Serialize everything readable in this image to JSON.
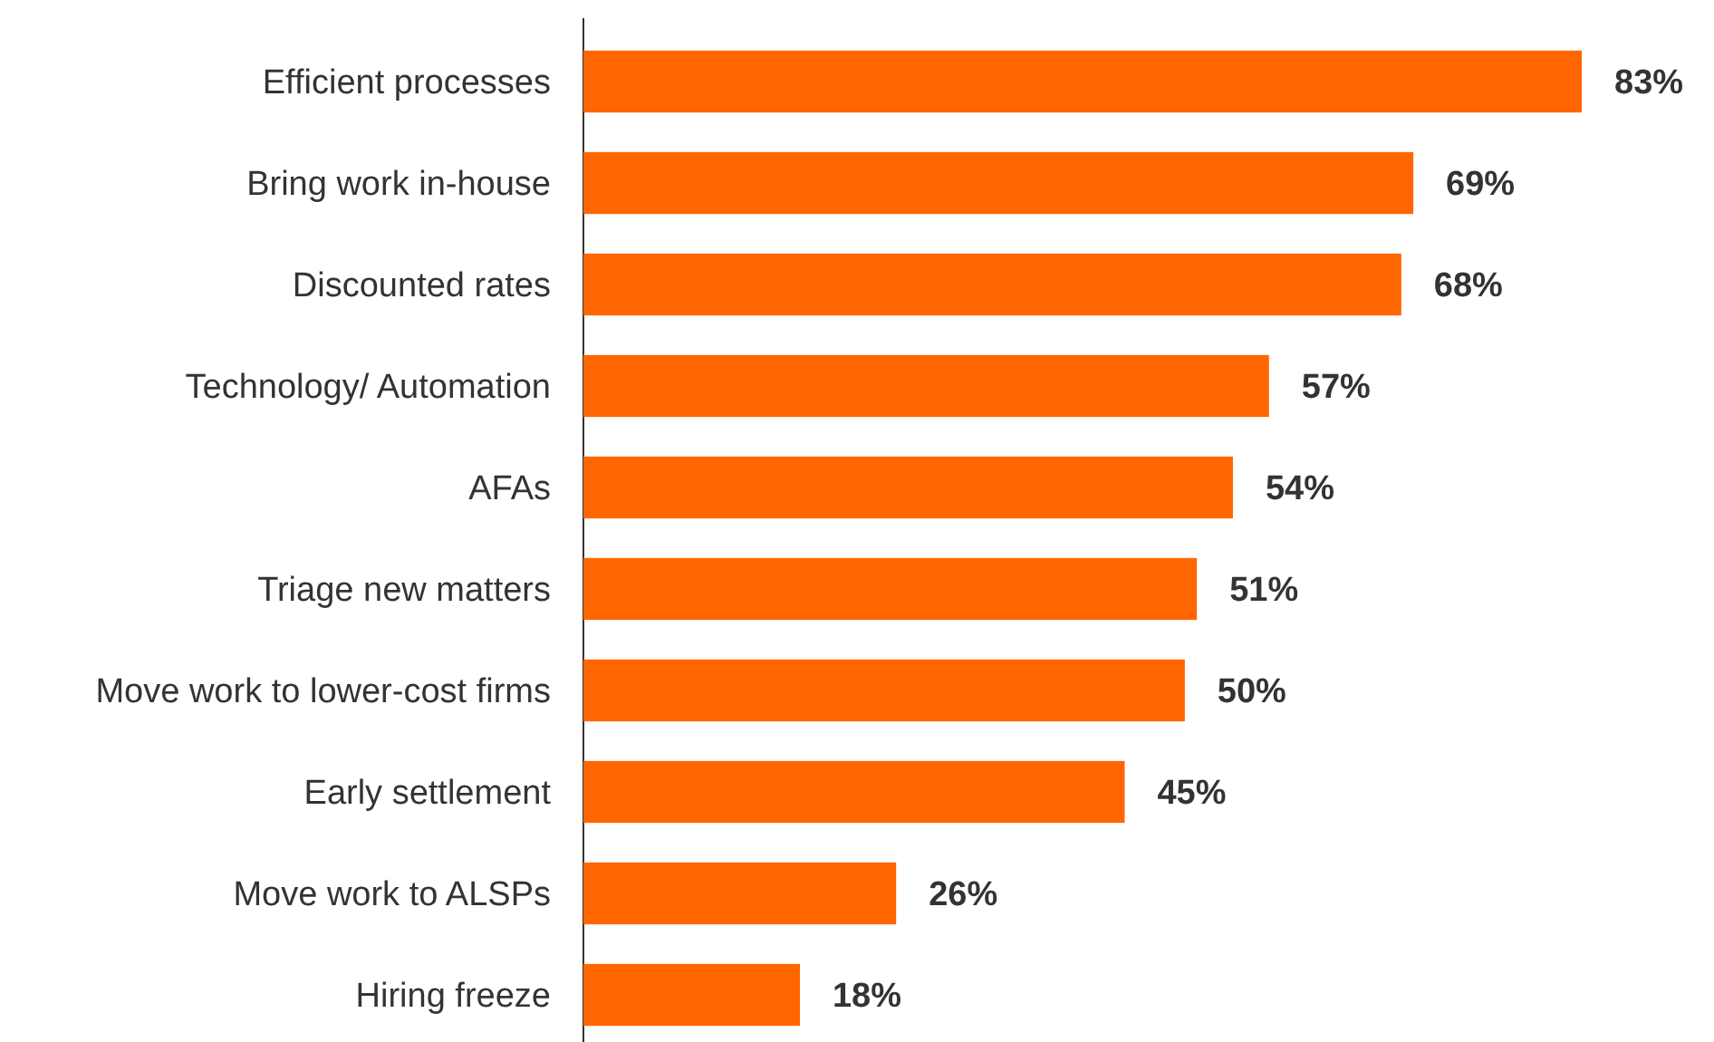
{
  "chart_data": {
    "type": "bar",
    "orientation": "horizontal",
    "categories": [
      "Efficient processes",
      "Bring work in-house",
      "Discounted rates",
      "Technology/ Automation",
      "AFAs",
      "Triage new matters",
      "Move work to lower-cost firms",
      "Early settlement",
      "Move work to ALSPs",
      "Hiring freeze"
    ],
    "values": [
      83,
      69,
      68,
      57,
      54,
      51,
      50,
      45,
      26,
      18
    ],
    "value_labels": [
      "83%",
      "69%",
      "68%",
      "57%",
      "54%",
      "51%",
      "50%",
      "45%",
      "26%",
      "18%"
    ],
    "color": "#ff6600"
  }
}
